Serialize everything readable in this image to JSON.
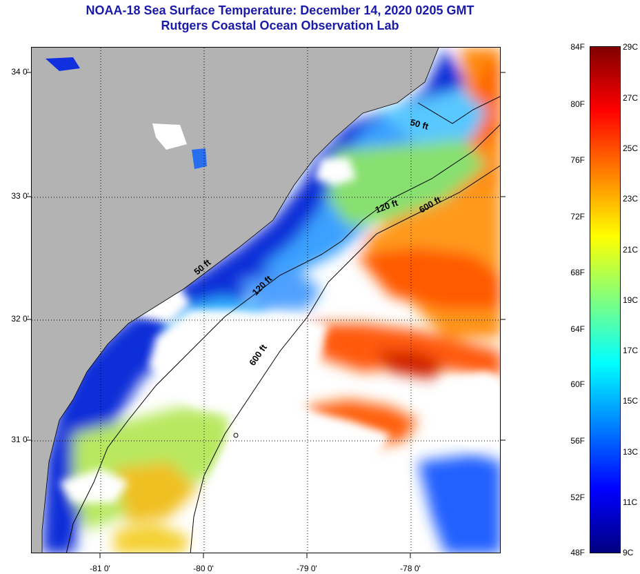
{
  "title_line1": "NOAA-18 Sea Surface Temperature:  December 14, 2020 0205 GMT",
  "title_line2": "Rutgers Coastal Ocean Observation Lab",
  "lat_labels": [
    "34 0'",
    "33 0'",
    "32 0'",
    "31 0'"
  ],
  "lon_labels": [
    "-81 0'",
    "-80 0'",
    "-79 0'",
    "-78 0'"
  ],
  "contour_labels": {
    "c50": "50 ft",
    "c120a": "120 ft",
    "c600a": "600 ft",
    "c120b": "120 ft",
    "c600b": "600 ft",
    "c50b": "50 ft"
  },
  "colorbar": {
    "f_labels": [
      "84F",
      "80F",
      "76F",
      "72F",
      "68F",
      "64F",
      "60F",
      "56F",
      "52F",
      "48F"
    ],
    "c_labels": [
      "29C",
      "27C",
      "25C",
      "23C",
      "21C",
      "19C",
      "17C",
      "15C",
      "13C",
      "11C",
      "9C"
    ],
    "colors": [
      "#000080",
      "#0000ff",
      "#0080ff",
      "#00ffff",
      "#80ff80",
      "#ffff00",
      "#ff8000",
      "#ff0000",
      "#800000"
    ]
  },
  "colors": {
    "land": "#b3b3b3",
    "no_data": "#ffffff",
    "title": "#1a1aa8"
  }
}
